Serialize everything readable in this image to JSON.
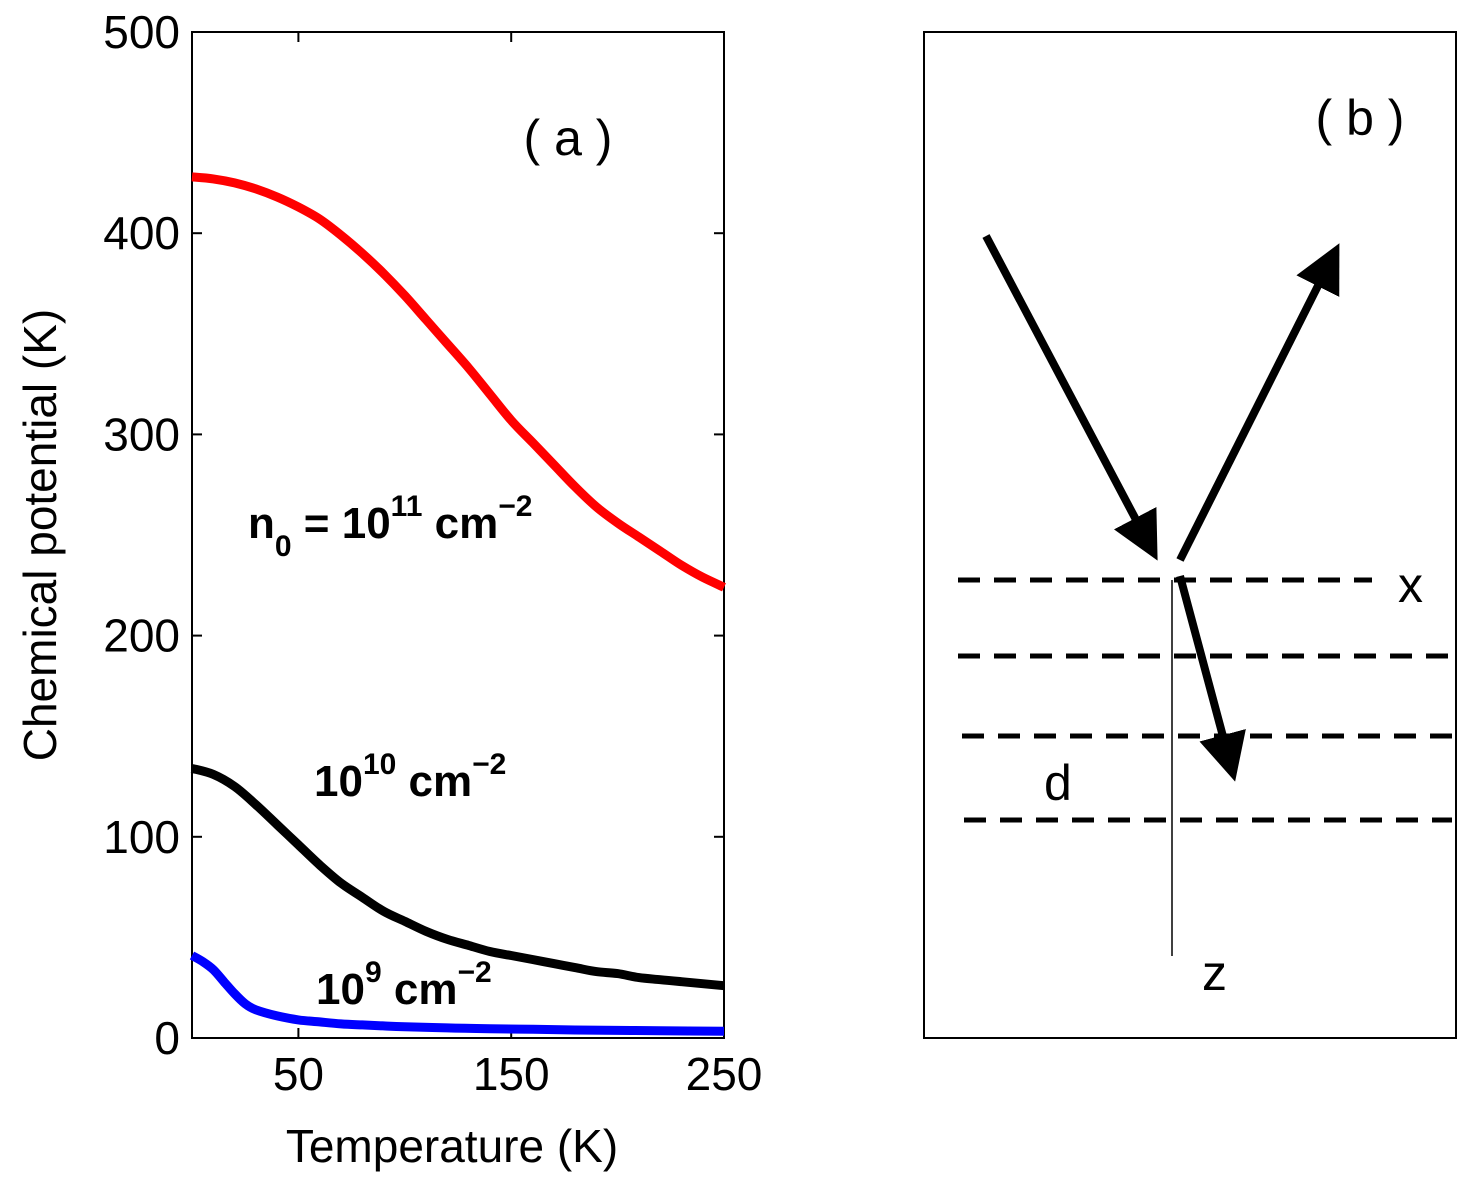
{
  "chart_data": [
    {
      "type": "line",
      "panel_label": "( a )",
      "xlabel": "Temperature (K)",
      "ylabel": "Chemical potential (K)",
      "xlim": [
        0,
        250
      ],
      "ylim": [
        0,
        500
      ],
      "xticks": [
        "50",
        "150",
        "250"
      ],
      "xtick_values": [
        50,
        150,
        250
      ],
      "yticks": [
        "0",
        "100",
        "200",
        "300",
        "400",
        "500"
      ],
      "ytick_values": [
        0,
        100,
        200,
        300,
        400,
        500
      ],
      "series": [
        {
          "name": "n0 = 10^11 cm^-2",
          "label_main": "n",
          "label_sub": "0",
          "label_mid": " = 10",
          "label_sup": "11",
          "label_unit": " cm",
          "label_unit_sup": "−2",
          "color": "#ff0000",
          "x": [
            0,
            10,
            20,
            30,
            40,
            50,
            60,
            70,
            80,
            90,
            100,
            110,
            120,
            130,
            140,
            150,
            160,
            170,
            180,
            190,
            200,
            210,
            220,
            230,
            240,
            250
          ],
          "y": [
            428,
            427,
            425,
            422,
            418,
            413,
            407,
            399,
            390,
            380,
            369,
            357,
            345,
            333,
            320,
            307,
            296,
            285,
            274,
            264,
            256,
            249,
            242,
            235,
            229,
            224
          ]
        },
        {
          "name": "10^10 cm^-2",
          "label_main": "10",
          "label_sup": "10",
          "label_unit": " cm",
          "label_unit_sup": "−2",
          "color": "#000000",
          "x": [
            0,
            10,
            20,
            30,
            40,
            50,
            60,
            70,
            80,
            90,
            100,
            110,
            120,
            130,
            140,
            150,
            160,
            170,
            180,
            190,
            200,
            210,
            220,
            230,
            240,
            250
          ],
          "y": [
            134,
            131,
            125,
            116,
            106,
            96,
            86,
            77,
            70,
            63,
            58,
            53,
            49,
            46,
            43,
            41,
            39,
            37,
            35,
            33,
            32,
            30,
            29,
            28,
            27,
            26
          ]
        },
        {
          "name": "10^9 cm^-2",
          "label_main": "10",
          "label_sup": "9",
          "label_unit": " cm",
          "label_unit_sup": "−2",
          "color": "#0000ff",
          "x": [
            0,
            5,
            10,
            15,
            20,
            25,
            30,
            40,
            50,
            60,
            70,
            80,
            90,
            100,
            120,
            140,
            160,
            180,
            200,
            220,
            250
          ],
          "y": [
            41,
            38,
            34,
            28,
            22,
            17,
            14,
            11,
            9,
            8,
            7,
            6.5,
            6,
            5.6,
            5,
            4.6,
            4.3,
            4,
            3.8,
            3.6,
            3.4
          ]
        }
      ]
    },
    {
      "type": "diagram",
      "panel_label": "( b )",
      "axis_x_label": "x",
      "axis_z_label": "z",
      "spacing_label": "d"
    }
  ]
}
